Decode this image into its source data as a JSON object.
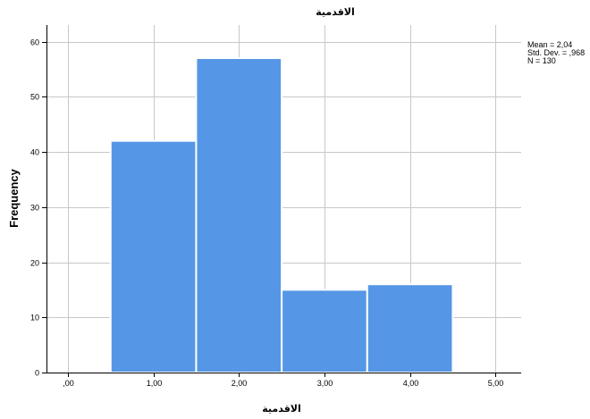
{
  "chart_data": {
    "type": "bar",
    "title": "الاقدمية",
    "xlabel": "الاقدمية",
    "ylabel": "Frequency",
    "categories": [
      "1,00",
      "2,00",
      "3,00",
      "4,00"
    ],
    "x_values": [
      1,
      2,
      3,
      4
    ],
    "values": [
      42,
      57,
      15,
      16
    ],
    "xlim": [
      -0.25,
      5.3
    ],
    "ylim": [
      0,
      63
    ],
    "x_ticks": [
      0,
      1,
      2,
      3,
      4,
      5
    ],
    "x_tick_labels": [
      ",00",
      "1,00",
      "2,00",
      "3,00",
      "4,00",
      "5,00"
    ],
    "y_ticks": [
      0,
      10,
      20,
      30,
      40,
      50,
      60
    ],
    "y_tick_labels": [
      "0",
      "10",
      "20",
      "30",
      "40",
      "50",
      "60"
    ],
    "grid": true,
    "bar_color": "#5596e6",
    "stats": [
      "Mean = 2,04",
      "Std. Dev. = ,968",
      "N = 130"
    ]
  }
}
